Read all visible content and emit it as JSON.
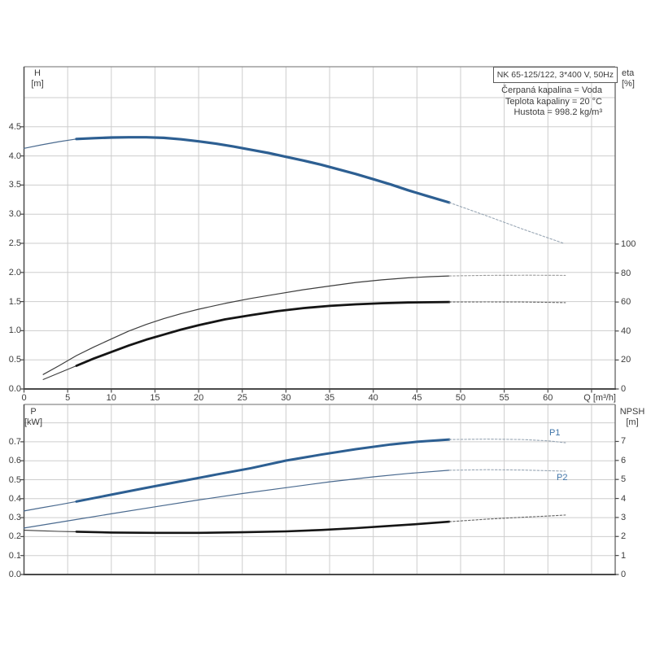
{
  "header": {
    "model_box": "NK 65-125/122, 3*400 V, 50Hz",
    "info_lines": [
      "Čerpaná kapalina = Voda",
      "Teplota kapaliny = 20 °C",
      "Hustota = 998.2 kg/m³"
    ]
  },
  "colors": {
    "curve_blue": "#2d5f92",
    "curve_blue_thin": "#4a6a8f",
    "curve_black": "#151515",
    "curve_gray_thin": "#3d3d3d",
    "ext_gray": "#9a9a9a",
    "ext_blue_gray": "#98a6b4",
    "ext_dark": "#666666",
    "grid": "#cdcdcd",
    "border": "#8a8a8a",
    "axis_dark": "#4a4a4a",
    "label_blue": "#3f74a8"
  },
  "chart_data": [
    {
      "id": "qh",
      "type": "line",
      "title": "Pump head / efficiency vs flow",
      "x_label": "Q [m³/h]",
      "y_left_label": [
        "H",
        "[m]"
      ],
      "y_right_label": [
        "eta",
        "[%]"
      ],
      "xlim": [
        0,
        67.7
      ],
      "ylim_left": [
        0,
        5.53
      ],
      "ylim_right": [
        0,
        111
      ],
      "grid": true,
      "x_ticks": [
        [
          0,
          "0"
        ],
        [
          5,
          "5"
        ],
        [
          10,
          "10"
        ],
        [
          15,
          "15"
        ],
        [
          20,
          "20"
        ],
        [
          25,
          "25"
        ],
        [
          30,
          "30"
        ],
        [
          35,
          "35"
        ],
        [
          40,
          "40"
        ],
        [
          45,
          "45"
        ],
        [
          50,
          "50"
        ],
        [
          55,
          "55"
        ],
        [
          60,
          "60"
        ]
      ],
      "y_left_ticks": [
        [
          0,
          "0.0"
        ],
        [
          0.5,
          "0.5"
        ],
        [
          1.0,
          "1.0"
        ],
        [
          1.5,
          "1.5"
        ],
        [
          2.0,
          "2.0"
        ],
        [
          2.5,
          "2.5"
        ],
        [
          3.0,
          "3.0"
        ],
        [
          3.5,
          "3.5"
        ],
        [
          4.0,
          "4.0"
        ],
        [
          4.5,
          "4.5"
        ]
      ],
      "y_right_ticks": [
        [
          0,
          "0"
        ],
        [
          20,
          "20"
        ],
        [
          40,
          "40"
        ],
        [
          60,
          "60"
        ],
        [
          80,
          "80"
        ],
        [
          100,
          "100"
        ]
      ],
      "grid_v": [
        5,
        10,
        15,
        20,
        25,
        30,
        35,
        40,
        45,
        50,
        55,
        60,
        65
      ],
      "grid_h_left": [
        0.5,
        1.0,
        1.5,
        2.0,
        2.5,
        3.0,
        3.5,
        4.0,
        4.5,
        5.0
      ],
      "series": [
        {
          "id": "H",
          "name": "head-curve",
          "axis": "left",
          "unit": "m",
          "strokes": [
            {
              "part": "lead",
              "color": "#4a6a8f",
              "width": 1.2,
              "dash": null,
              "points": [
                [
                  0,
                  4.13
                ],
                [
                  2,
                  4.19
                ],
                [
                  4,
                  4.245
                ],
                [
                  6,
                  4.29
                ]
              ]
            },
            {
              "part": "main",
              "color": "#2d5f92",
              "width": 3.2,
              "dash": null,
              "points": [
                [
                  6,
                  4.29
                ],
                [
                  8,
                  4.305
                ],
                [
                  10,
                  4.315
                ],
                [
                  12,
                  4.32
                ],
                [
                  14,
                  4.32
                ],
                [
                  16,
                  4.31
                ],
                [
                  18,
                  4.285
                ],
                [
                  20,
                  4.25
                ],
                [
                  22,
                  4.21
                ],
                [
                  24,
                  4.16
                ],
                [
                  26,
                  4.105
                ],
                [
                  28,
                  4.05
                ],
                [
                  30,
                  3.985
                ],
                [
                  32,
                  3.92
                ],
                [
                  34,
                  3.85
                ],
                [
                  36,
                  3.77
                ],
                [
                  38,
                  3.69
                ],
                [
                  40,
                  3.6
                ],
                [
                  42,
                  3.51
                ],
                [
                  44,
                  3.41
                ],
                [
                  46,
                  3.32
                ],
                [
                  48.7,
                  3.2
                ]
              ]
            },
            {
              "part": "ext",
              "color": "#98a6b4",
              "width": 1.1,
              "dash": "2.5 2.2",
              "points": [
                [
                  48.7,
                  3.2
                ],
                [
                  53,
                  2.97
                ],
                [
                  57,
                  2.75
                ],
                [
                  61.8,
                  2.5
                ]
              ]
            }
          ]
        },
        {
          "id": "eta1",
          "name": "pump-efficiency-curve",
          "axis": "right",
          "unit": "%",
          "strokes": [
            {
              "part": "main",
              "color": "#3d3d3d",
              "width": 1.2,
              "dash": null,
              "points": [
                [
                  2.2,
                  10
                ],
                [
                  4,
                  16
                ],
                [
                  6,
                  23
                ],
                [
                  8,
                  29
                ],
                [
                  10,
                  34.5
                ],
                [
                  12,
                  40
                ],
                [
                  14,
                  44.5
                ],
                [
                  16,
                  48.5
                ],
                [
                  18,
                  52
                ],
                [
                  20,
                  55
                ],
                [
                  23,
                  59
                ],
                [
                  26,
                  62.5
                ],
                [
                  29,
                  65.5
                ],
                [
                  32,
                  68.5
                ],
                [
                  35,
                  71
                ],
                [
                  38,
                  73.5
                ],
                [
                  41,
                  75.3
                ],
                [
                  44,
                  76.7
                ],
                [
                  46.5,
                  77.5
                ],
                [
                  48.7,
                  78
                ]
              ]
            },
            {
              "part": "ext",
              "color": "#9a9a9a",
              "width": 1.1,
              "dash": "2.5 2.2",
              "points": [
                [
                  48.7,
                  78
                ],
                [
                  53,
                  78.4
                ],
                [
                  58,
                  78.5
                ],
                [
                  62,
                  78.4
                ]
              ]
            }
          ]
        },
        {
          "id": "eta2",
          "name": "total-efficiency-curve",
          "axis": "right",
          "unit": "%",
          "strokes": [
            {
              "part": "lead",
              "color": "#3d3d3d",
              "width": 1.1,
              "dash": null,
              "points": [
                [
                  2.2,
                  6.5
                ],
                [
                  4,
                  11
                ],
                [
                  6,
                  16
                ]
              ]
            },
            {
              "part": "main",
              "color": "#151515",
              "width": 2.8,
              "dash": null,
              "points": [
                [
                  6,
                  16
                ],
                [
                  8,
                  21
                ],
                [
                  10,
                  25.5
                ],
                [
                  12,
                  30
                ],
                [
                  14,
                  34
                ],
                [
                  16,
                  37.5
                ],
                [
                  18,
                  41
                ],
                [
                  20,
                  44
                ],
                [
                  23,
                  48
                ],
                [
                  26,
                  51
                ],
                [
                  29,
                  53.7
                ],
                [
                  32,
                  55.8
                ],
                [
                  35,
                  57.3
                ],
                [
                  38,
                  58.4
                ],
                [
                  41,
                  59.2
                ],
                [
                  44,
                  59.7
                ],
                [
                  48.7,
                  60
                ]
              ]
            },
            {
              "part": "ext",
              "color": "#666666",
              "width": 1.1,
              "dash": "2.5 2.2",
              "points": [
                [
                  48.7,
                  60
                ],
                [
                  53,
                  60.1
                ],
                [
                  57,
                  60
                ],
                [
                  62,
                  59.6
                ]
              ]
            }
          ]
        }
      ]
    },
    {
      "id": "power",
      "type": "line",
      "title": "Power / NPSH vs flow",
      "x_label": "",
      "y_left_label": [
        "P",
        "[kW]"
      ],
      "y_right_label": [
        "NPSH",
        "[m]"
      ],
      "xlim": [
        0,
        67.7
      ],
      "ylim_left": [
        0,
        0.9
      ],
      "ylim_right": [
        0,
        8.9
      ],
      "grid": true,
      "x_ticks": [],
      "y_left_ticks": [
        [
          0,
          "0.0"
        ],
        [
          0.1,
          "0.1"
        ],
        [
          0.2,
          "0.2"
        ],
        [
          0.3,
          "0.3"
        ],
        [
          0.4,
          "0.4"
        ],
        [
          0.5,
          "0.5"
        ],
        [
          0.6,
          "0.6"
        ],
        [
          0.7,
          "0.7"
        ]
      ],
      "y_right_ticks": [
        [
          0,
          "0"
        ],
        [
          1,
          "1"
        ],
        [
          2,
          "2"
        ],
        [
          3,
          "3"
        ],
        [
          4,
          "4"
        ],
        [
          5,
          "5"
        ],
        [
          6,
          "6"
        ],
        [
          7,
          "7"
        ]
      ],
      "grid_v": [
        5,
        10,
        15,
        20,
        25,
        30,
        35,
        40,
        45,
        50,
        55,
        60,
        65
      ],
      "grid_h_left": [
        0.1,
        0.2,
        0.3,
        0.4,
        0.5,
        0.6,
        0.7,
        0.8
      ],
      "series": [
        {
          "id": "P1",
          "name": "power-p1-curve",
          "axis": "left",
          "unit": "kW",
          "label": "P1",
          "strokes": [
            {
              "part": "lead",
              "color": "#4a6a8f",
              "width": 1.2,
              "dash": null,
              "points": [
                [
                  0,
                  0.335
                ],
                [
                  2,
                  0.352
                ],
                [
                  4,
                  0.368
                ],
                [
                  6,
                  0.385
                ]
              ]
            },
            {
              "part": "main",
              "color": "#2d5f92",
              "width": 3.0,
              "dash": null,
              "points": [
                [
                  6,
                  0.385
                ],
                [
                  10,
                  0.421
                ],
                [
                  14,
                  0.457
                ],
                [
                  18,
                  0.492
                ],
                [
                  22,
                  0.527
                ],
                [
                  26,
                  0.561
                ],
                [
                  30,
                  0.601
                ],
                [
                  34,
                  0.632
                ],
                [
                  38,
                  0.661
                ],
                [
                  42,
                  0.686
                ],
                [
                  45,
                  0.7
                ],
                [
                  48.7,
                  0.712
                ]
              ]
            },
            {
              "part": "ext",
              "color": "#98a6b4",
              "width": 1.1,
              "dash": "2.5 2.2",
              "points": [
                [
                  48.7,
                  0.712
                ],
                [
                  53,
                  0.714
                ],
                [
                  57,
                  0.712
                ],
                [
                  60,
                  0.705
                ],
                [
                  62,
                  0.695
                ]
              ]
            }
          ]
        },
        {
          "id": "P2",
          "name": "power-p2-curve",
          "axis": "left",
          "unit": "kW",
          "label": "P2",
          "strokes": [
            {
              "part": "main",
              "color": "#4a6a8f",
              "width": 1.2,
              "dash": null,
              "points": [
                [
                  0,
                  0.245
                ],
                [
                  5,
                  0.283
                ],
                [
                  10,
                  0.32
                ],
                [
                  15,
                  0.357
                ],
                [
                  20,
                  0.393
                ],
                [
                  25,
                  0.427
                ],
                [
                  30,
                  0.458
                ],
                [
                  35,
                  0.489
                ],
                [
                  40,
                  0.515
                ],
                [
                  44,
                  0.533
                ],
                [
                  48.7,
                  0.55
                ]
              ]
            },
            {
              "part": "ext",
              "color": "#98a6b4",
              "width": 1.1,
              "dash": "2.5 2.2",
              "points": [
                [
                  48.7,
                  0.55
                ],
                [
                  53,
                  0.553
                ],
                [
                  57,
                  0.551
                ],
                [
                  62,
                  0.545
                ]
              ]
            }
          ]
        },
        {
          "id": "NPSH",
          "name": "npsh-curve",
          "axis": "right",
          "unit": "m",
          "strokes": [
            {
              "part": "lead",
              "color": "#3d3d3d",
              "width": 1.1,
              "dash": null,
              "points": [
                [
                  0,
                  2.33
                ],
                [
                  2,
                  2.3
                ],
                [
                  4,
                  2.27
                ],
                [
                  6,
                  2.25
                ]
              ]
            },
            {
              "part": "main",
              "color": "#151515",
              "width": 2.6,
              "dash": null,
              "points": [
                [
                  6,
                  2.25
                ],
                [
                  10,
                  2.21
                ],
                [
                  15,
                  2.19
                ],
                [
                  20,
                  2.19
                ],
                [
                  25,
                  2.22
                ],
                [
                  30,
                  2.27
                ],
                [
                  34,
                  2.34
                ],
                [
                  38,
                  2.44
                ],
                [
                  42,
                  2.56
                ],
                [
                  45,
                  2.65
                ],
                [
                  48.7,
                  2.78
                ]
              ]
            },
            {
              "part": "ext",
              "color": "#666666",
              "width": 1.1,
              "dash": "2.5 2.2",
              "points": [
                [
                  48.7,
                  2.78
                ],
                [
                  53,
                  2.91
                ],
                [
                  57,
                  3.01
                ],
                [
                  60,
                  3.08
                ],
                [
                  62,
                  3.13
                ]
              ]
            }
          ]
        }
      ]
    }
  ]
}
